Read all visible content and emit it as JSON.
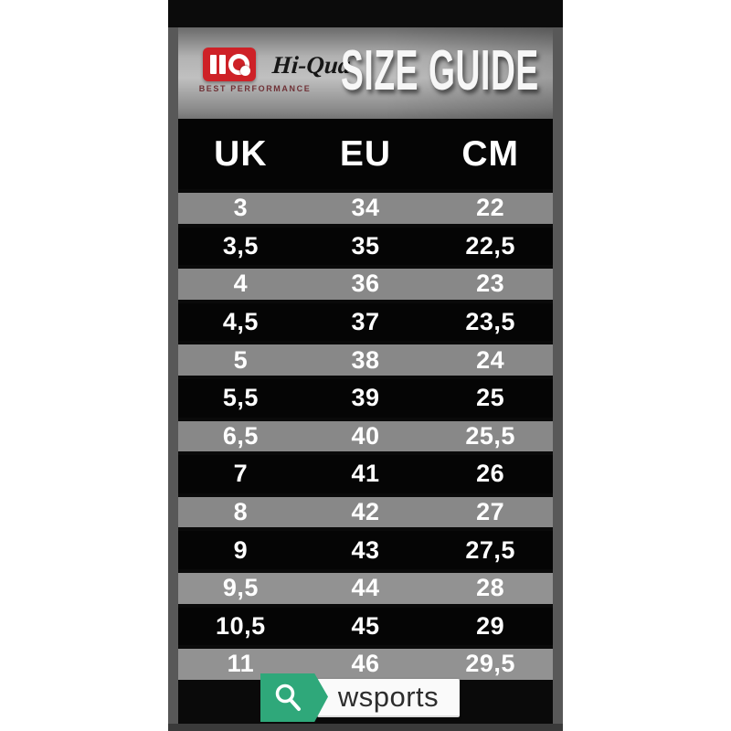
{
  "brand": {
    "name": "Hi-Qua",
    "registered": "®",
    "tagline": "BEST PERFORMANCE"
  },
  "header": {
    "title": "SIZE GUIDE"
  },
  "chart_data": {
    "type": "table",
    "title": "SIZE GUIDE",
    "columns": [
      "UK",
      "EU",
      "CM"
    ],
    "rows": [
      [
        "3",
        "34",
        "22"
      ],
      [
        "3,5",
        "35",
        "22,5"
      ],
      [
        "4",
        "36",
        "23"
      ],
      [
        "4,5",
        "37",
        "23,5"
      ],
      [
        "5",
        "38",
        "24"
      ],
      [
        "5,5",
        "39",
        "25"
      ],
      [
        "6,5",
        "40",
        "25,5"
      ],
      [
        "7",
        "41",
        "26"
      ],
      [
        "8",
        "42",
        "27"
      ],
      [
        "9",
        "43",
        "27,5"
      ],
      [
        "9,5",
        "44",
        "28"
      ],
      [
        "10,5",
        "45",
        "29"
      ],
      [
        "11",
        "46",
        "29,5"
      ]
    ]
  },
  "watermark": {
    "text": "wsports"
  },
  "icons": {
    "logo_mark": "hq-monogram",
    "watermark_icon": "search"
  },
  "colors": {
    "brand_red": "#ce2127",
    "watermark_green": "#2fa87a",
    "row_gray": "#888888",
    "row_black": "#050505",
    "frame_gray": "#585858"
  }
}
